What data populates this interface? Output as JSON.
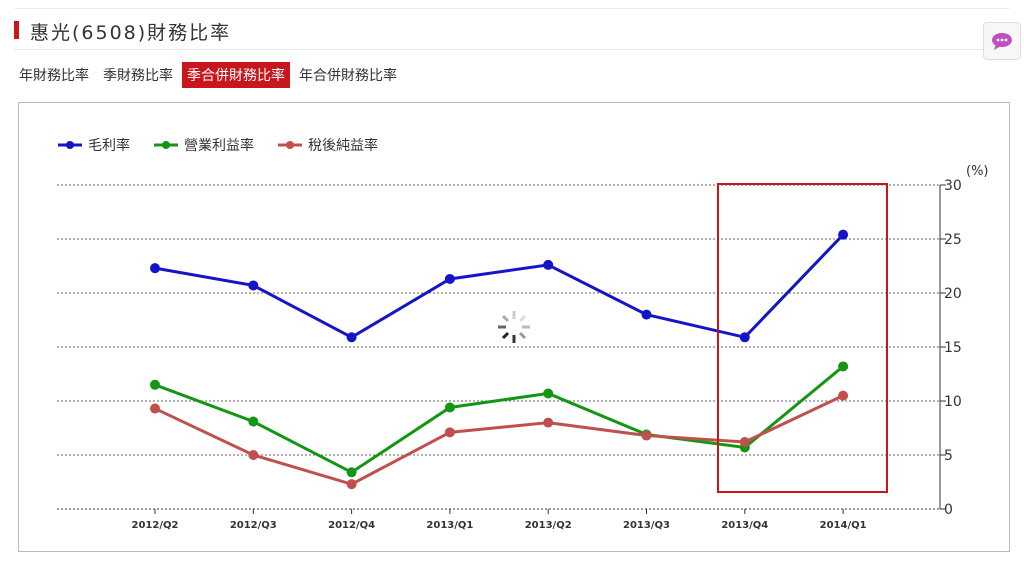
{
  "header": {
    "title": "惠光(6508)財務比率"
  },
  "tabs": [
    "年財務比率",
    "季財務比率",
    "季合併財務比率",
    "年合併財務比率"
  ],
  "active_tab": 2,
  "chart_data": {
    "type": "line",
    "y_unit": "(%)",
    "categories": [
      "2012/Q2",
      "2012/Q3",
      "2012/Q4",
      "2013/Q1",
      "2013/Q2",
      "2013/Q3",
      "2013/Q4",
      "2014/Q1"
    ],
    "series": [
      {
        "name": "毛利率",
        "color": "#1414c8",
        "values": [
          22.3,
          20.7,
          15.9,
          21.3,
          22.6,
          18.0,
          15.9,
          25.4
        ]
      },
      {
        "name": "營業利益率",
        "color": "#149614",
        "values": [
          11.5,
          8.1,
          3.4,
          9.4,
          10.7,
          6.9,
          5.7,
          13.2
        ]
      },
      {
        "name": "稅後純益率",
        "color": "#c0504d",
        "values": [
          9.3,
          5.0,
          2.3,
          7.1,
          8.0,
          6.8,
          6.2,
          10.5
        ]
      }
    ],
    "ylim": [
      0,
      30
    ],
    "yticks": [
      0,
      5,
      10,
      15,
      20,
      25,
      30
    ],
    "grid": true,
    "legend": "top-left"
  }
}
